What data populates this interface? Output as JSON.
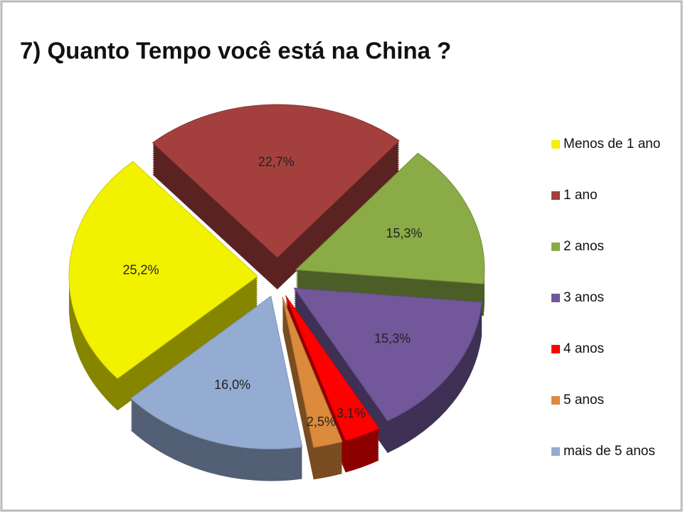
{
  "chart_data": {
    "type": "pie",
    "title": "7) Quanto Tempo você está na China ?",
    "categories": [
      "Menos de 1 ano",
      "1 ano",
      "2 anos",
      "3 anos",
      "4 anos",
      "5 anos",
      "mais de 5 anos"
    ],
    "values": [
      25.2,
      22.7,
      15.3,
      15.3,
      3.1,
      2.5,
      16.0
    ],
    "value_labels": [
      "25,2%",
      "22,7%",
      "15,3%",
      "15,3%",
      "3,1%",
      "2,5%",
      "16,0%"
    ],
    "colors": [
      "#f2f200",
      "#a3403d",
      "#8aab46",
      "#72579a",
      "#ff0000",
      "#dc8a3c",
      "#95acd2"
    ],
    "legend": "right"
  }
}
